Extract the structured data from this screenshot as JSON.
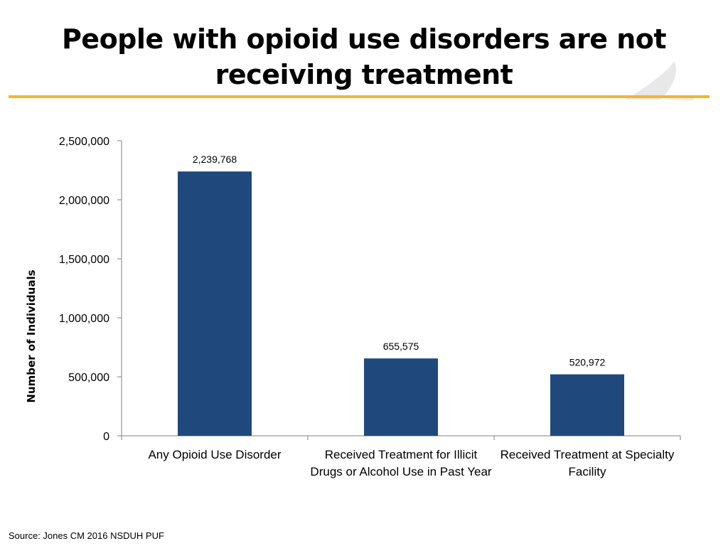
{
  "slide": {
    "title": "People with opioid use disorders are not receiving treatment",
    "source": "Source: Jones CM 2016 NSDUH PUF",
    "accent_color": "#F2B72A",
    "bar_color": "#1F497D",
    "decor_icon": "swoosh-logo-icon"
  },
  "chart_data": {
    "type": "bar",
    "title": "",
    "xlabel": "",
    "ylabel": "Number of Individuals",
    "categories": [
      "Any Opioid Use Disorder",
      "Received Treatment for Illicit Drugs or Alcohol Use in Past Year",
      "Received Treatment at Specialty Facility"
    ],
    "values": [
      2239768,
      655575,
      520972
    ],
    "data_labels": [
      "2,239,768",
      "655,575",
      "520,972"
    ],
    "ylim": [
      0,
      2500000
    ],
    "yticks": [
      0,
      500000,
      1000000,
      1500000,
      2000000,
      2500000
    ],
    "ytick_labels": [
      "0",
      "500,000",
      "1,000,000",
      "1,500,000",
      "2,000,000",
      "2,500,000"
    ],
    "grid": false,
    "legend": "none"
  }
}
